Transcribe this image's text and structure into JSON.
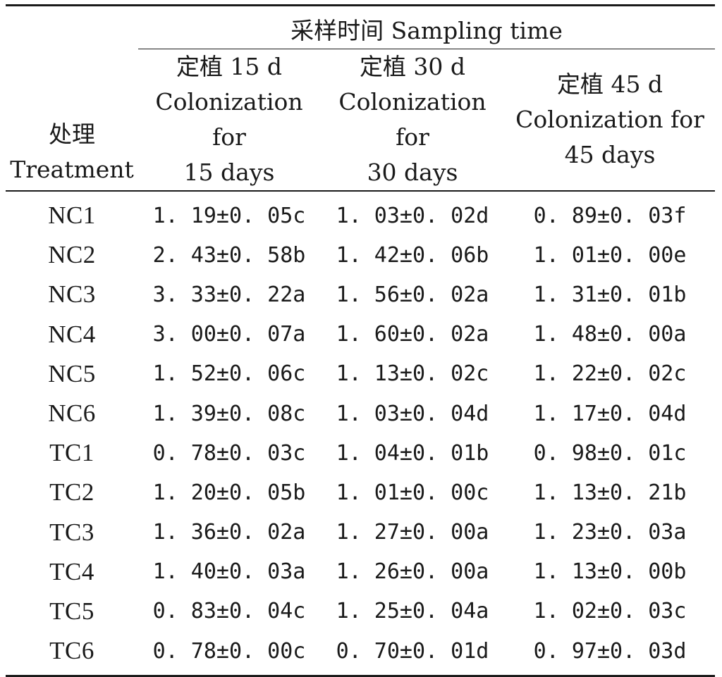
{
  "table": {
    "header": {
      "treatment_cn": "处理",
      "treatment_en": "Treatment",
      "sampling_span": "采样时间 Sampling time",
      "columns": [
        {
          "cn": "定植 15 d",
          "en": "Colonization for",
          "days": "15 days"
        },
        {
          "cn": "定植 30 d",
          "en": "Colonization for",
          "days": "30 days"
        },
        {
          "cn": "定植 45 d",
          "en": "Colonization for",
          "days": "45 days"
        }
      ]
    },
    "rows": [
      {
        "treatment": "NC1",
        "d15": "1. 19±0. 05c",
        "d30": "1. 03±0. 02d",
        "d45": "0. 89±0. 03f"
      },
      {
        "treatment": "NC2",
        "d15": "2. 43±0. 58b",
        "d30": "1. 42±0. 06b",
        "d45": "1. 01±0. 00e"
      },
      {
        "treatment": "NC3",
        "d15": "3. 33±0. 22a",
        "d30": "1. 56±0. 02a",
        "d45": "1. 31±0. 01b"
      },
      {
        "treatment": "NC4",
        "d15": "3. 00±0. 07a",
        "d30": "1. 60±0. 02a",
        "d45": "1. 48±0. 00a"
      },
      {
        "treatment": "NC5",
        "d15": "1. 52±0. 06c",
        "d30": "1. 13±0. 02c",
        "d45": "1. 22±0. 02c"
      },
      {
        "treatment": "NC6",
        "d15": "1. 39±0. 08c",
        "d30": "1. 03±0. 04d",
        "d45": "1. 17±0. 04d"
      },
      {
        "treatment": "TC1",
        "d15": "0. 78±0. 03c",
        "d30": "1. 04±0. 01b",
        "d45": "0. 98±0. 01c"
      },
      {
        "treatment": "TC2",
        "d15": "1. 20±0. 05b",
        "d30": "1. 01±0. 00c",
        "d45": "1. 13±0. 21b"
      },
      {
        "treatment": "TC3",
        "d15": "1. 36±0. 02a",
        "d30": "1. 27±0. 00a",
        "d45": "1. 23±0. 03a"
      },
      {
        "treatment": "TC4",
        "d15": "1. 40±0. 03a",
        "d30": "1. 26±0. 00a",
        "d45": "1. 13±0. 00b"
      },
      {
        "treatment": "TC5",
        "d15": "0. 83±0. 04c",
        "d30": "1. 25±0. 04a",
        "d45": "1. 02±0. 03c"
      },
      {
        "treatment": "TC6",
        "d15": "0. 78±0. 00c",
        "d30": "0. 70±0. 01d",
        "d45": "0. 97±0. 03d"
      }
    ]
  }
}
